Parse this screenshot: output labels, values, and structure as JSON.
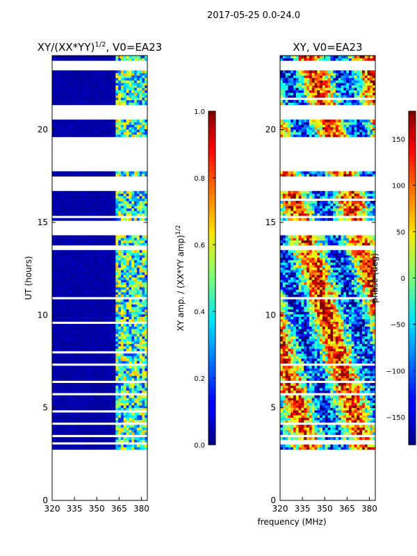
{
  "suptitle": "2017-05-25 0.0-24.0",
  "xlabel_shared": "frequency (MHz)",
  "chart_data": [
    {
      "type": "heatmap",
      "title": "XY/(XX*YY)",
      "title_sup": "1/2",
      "title_suffix": ", V0=EA23",
      "ylabel": "UT (hours)",
      "xlabel": "",
      "xlim": [
        320,
        384
      ],
      "ylim": [
        0,
        24
      ],
      "xticks": [
        320,
        335,
        350,
        365,
        380
      ],
      "yticks": [
        0,
        5,
        10,
        15,
        20
      ],
      "data_ut_range": [
        2.75,
        24
      ],
      "colorbar": {
        "label": "XY amp. / (XX*YY amp)",
        "label_sup": "1/2",
        "ticks": [
          "0.0",
          "0.2",
          "0.4",
          "0.6",
          "0.8",
          "1.0"
        ],
        "range": [
          0,
          1
        ],
        "colormap": "jet"
      }
    },
    {
      "type": "heatmap",
      "title": "XY, V0=EA23",
      "ylabel": "",
      "xlabel": "frequency (MHz)",
      "xlim": [
        320,
        384
      ],
      "ylim": [
        0,
        24
      ],
      "xticks": [
        320,
        335,
        350,
        365,
        380
      ],
      "yticks": [
        0,
        5,
        10,
        15,
        20
      ],
      "data_ut_range": [
        2.75,
        24
      ],
      "colorbar": {
        "label": "phase (deg)",
        "ticks": [
          "−150",
          "−100",
          "−50",
          "0",
          "50",
          "100",
          "150"
        ],
        "range": [
          -180,
          180
        ],
        "colormap": "jet"
      }
    }
  ]
}
